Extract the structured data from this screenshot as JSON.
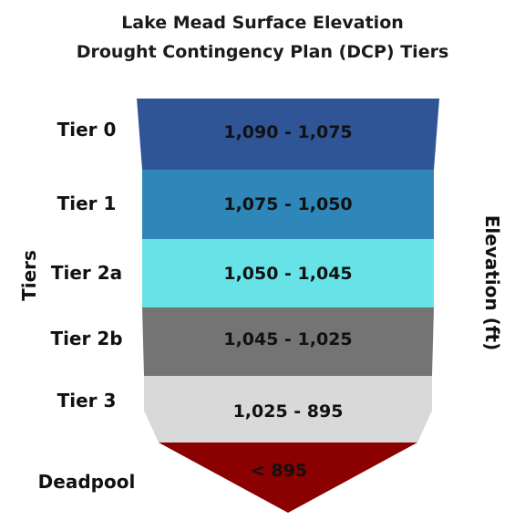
{
  "title_line1": "Lake Mead Surface Elevation",
  "title_line2": "Drought Contingency Plan (DCP) Tiers",
  "left_axis_label": "Tiers",
  "right_axis_label": "Elevation (ft)",
  "tiers": [
    {
      "name": "Tier 0",
      "range": "1,090 - 1,075",
      "color": "#2f5597"
    },
    {
      "name": "Tier 1",
      "range": "1,075 - 1,050",
      "color": "#2e87b8"
    },
    {
      "name": "Tier 2a",
      "range": "1,050 - 1,045",
      "color": "#67e3e8"
    },
    {
      "name": "Tier 2b",
      "range": "1,045 - 1,025",
      "color": "#747474"
    },
    {
      "name": "Tier 3",
      "range": "1,025 - 895",
      "color": "#d9d9d9"
    },
    {
      "name": "Deadpool",
      "range": "< 895",
      "color": "#8b0000"
    }
  ]
}
